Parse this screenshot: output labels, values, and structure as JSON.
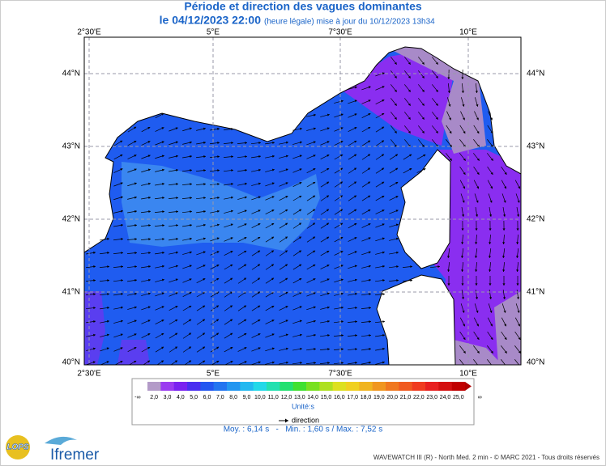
{
  "header": {
    "title": "Période et direction des vagues dominantes",
    "date": "le 04/12/2023 22:00",
    "update": "(heure légale) mise à jour du 10/12/2023 13h34"
  },
  "map": {
    "lon_labels": [
      "2°30'E",
      "5°E",
      "7°30'E",
      "10°E"
    ],
    "lat_labels": [
      "44°N",
      "43°N",
      "42°N",
      "41°N",
      "40°N"
    ]
  },
  "legend": {
    "labels": [
      "-∞",
      "2,0",
      "3,0",
      "4,0",
      "5,0",
      "6,0",
      "7,0",
      "8,0",
      "9,0",
      "10,0",
      "11,0",
      "12,0",
      "13,0",
      "14,0",
      "15,0",
      "16,0",
      "17,0",
      "18,0",
      "19,0",
      "20,0",
      "21,0",
      "22,0",
      "23,0",
      "24,0",
      "25,0",
      "∞"
    ],
    "colors": [
      "#b39bc8",
      "#9a3cf0",
      "#7a22f0",
      "#4a2ef0",
      "#2256f0",
      "#2274f0",
      "#2296f0",
      "#22b8f0",
      "#22d8e8",
      "#22e0b0",
      "#22e070",
      "#40e030",
      "#78e020",
      "#aee020",
      "#dde020",
      "#f0d020",
      "#f0b420",
      "#f09620",
      "#f07820",
      "#f05a20",
      "#f03c20",
      "#e82020",
      "#d41010",
      "#c00000"
    ],
    "unit": "Unité:s",
    "direction": "direction"
  },
  "stats": "Moy. : 6,14 s   -   Min. : 1,60 s / Max. : 7,52 s",
  "footer": "WAVEWATCH III (R) - North Med. 2 min - © MARC 2021 - Tous droits réservés",
  "logos": {
    "lops": "LOPS",
    "ifremer": "Ifremer"
  }
}
